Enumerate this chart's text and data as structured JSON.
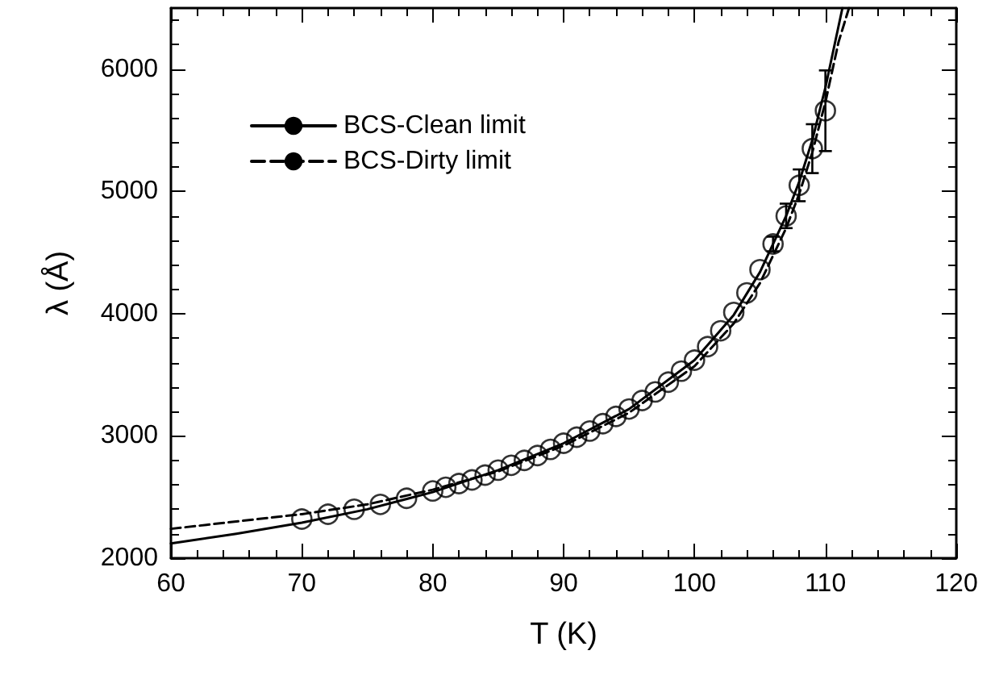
{
  "chart_data": {
    "type": "scatter",
    "xlabel": "T (K)",
    "ylabel": "λ (Å)",
    "xlim": [
      60,
      120
    ],
    "xticks": [
      60,
      70,
      80,
      90,
      100,
      110,
      120
    ],
    "ylim": [
      2000,
      6500
    ],
    "yticks": [
      2000,
      3000,
      4000,
      5000,
      6000
    ],
    "grid": false,
    "legend": "top left",
    "series": [
      {
        "marker": "circle",
        "color": "#000000",
        "x": [
          70,
          72,
          74,
          76,
          78,
          80,
          81,
          82,
          83,
          84,
          85,
          86,
          87,
          88,
          89,
          90,
          91,
          92,
          93,
          94,
          95,
          96,
          97,
          98,
          99,
          100,
          101,
          102,
          103,
          104,
          105,
          106,
          107,
          108,
          109,
          110
        ],
        "values": [
          2320,
          2360,
          2400,
          2440,
          2490,
          2550,
          2580,
          2610,
          2640,
          2680,
          2720,
          2760,
          2800,
          2840,
          2890,
          2940,
          2990,
          3040,
          3100,
          3160,
          3220,
          3290,
          3360,
          3440,
          3530,
          3620,
          3730,
          3860,
          4010,
          4170,
          4360,
          4570,
          4800,
          5050,
          5350,
          5660
        ],
        "errors": [
          null,
          null,
          null,
          null,
          null,
          null,
          null,
          null,
          null,
          null,
          null,
          null,
          null,
          null,
          null,
          null,
          null,
          null,
          null,
          null,
          null,
          null,
          null,
          null,
          null,
          null,
          null,
          null,
          null,
          null,
          null,
          60,
          100,
          130,
          200,
          330
        ]
      },
      {
        "type": "line",
        "name": "BCS-Clean limit",
        "marker": "none",
        "line_style": "solid",
        "color": "#000000",
        "x": [
          60,
          65,
          70,
          75,
          80,
          85,
          90,
          95,
          100,
          103,
          105,
          107,
          108,
          109,
          110,
          111,
          111.3
        ],
        "values": [
          2120,
          2200,
          2290,
          2400,
          2540,
          2720,
          2940,
          3220,
          3620,
          3990,
          4340,
          4800,
          5080,
          5420,
          5850,
          6350,
          6500
        ]
      },
      {
        "type": "line",
        "name": "BCS-Dirty limit",
        "marker": "none",
        "line_style": "dashed",
        "color": "#000000",
        "x": [
          60,
          65,
          70,
          75,
          80,
          85,
          90,
          95,
          100,
          103,
          105,
          107,
          108,
          109,
          110,
          111,
          111.8
        ],
        "values": [
          2240,
          2300,
          2360,
          2440,
          2560,
          2710,
          2920,
          3190,
          3570,
          3920,
          4250,
          4700,
          4980,
          5320,
          5730,
          6220,
          6500
        ]
      }
    ]
  }
}
